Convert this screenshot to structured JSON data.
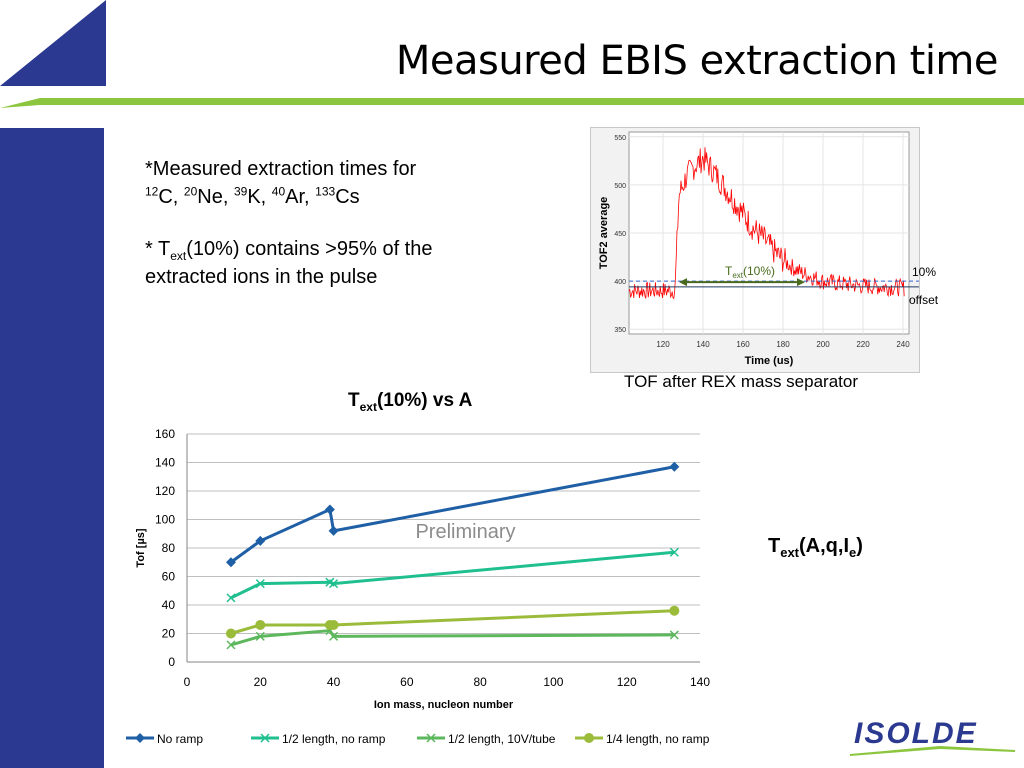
{
  "slide": {
    "title": "Measured EBIS extraction time",
    "bullet1": {
      "line1": "*Measured extraction times for",
      "isotopes": [
        {
          "mass": "12",
          "symbol": "C",
          "sep": ", "
        },
        {
          "mass": "20",
          "symbol": "Ne",
          "sep": ", "
        },
        {
          "mass": "39",
          "symbol": "K",
          "sep": ", "
        },
        {
          "mass": "40",
          "symbol": "Ar",
          "sep": ", "
        },
        {
          "mass": "133",
          "symbol": "Cs",
          "sep": ""
        }
      ]
    },
    "bullet2": {
      "prefix": "* T",
      "sub": "ext",
      "rest": "(10%) contains >95% of the",
      "line2": "extracted ions in the pulse"
    },
    "formula": {
      "t": "T",
      "sub": "ext",
      "args": "(A,q,I",
      "isub": "e",
      "close": ")"
    },
    "tof_caption": "TOF after REX mass separator",
    "tof_label_10": "10%",
    "tof_label_offset": "offset",
    "logo_text": "ISOLDE",
    "colors": {
      "accent_blue": "#2b3990",
      "accent_green": "#8cc63f",
      "no_ramp": "#1f5fa6",
      "half_no_ramp": "#1fbf8f",
      "half_10v": "#5db85d",
      "quarter_no_ramp": "#9bbb3b",
      "tof_signal": "#ff0000"
    }
  },
  "chart_data": [
    {
      "type": "line",
      "title": {
        "t": "T",
        "sub": "ext",
        "rest": "(10%) vs A"
      },
      "xlabel": "Ion mass, nucleon number",
      "ylabel": "Tof [µs]",
      "xlim": [
        0,
        140
      ],
      "ylim": [
        0,
        160
      ],
      "xticks": [
        0,
        20,
        40,
        60,
        80,
        100,
        120,
        140
      ],
      "yticks": [
        0,
        20,
        40,
        60,
        80,
        100,
        120,
        140,
        160
      ],
      "grid": "horizontal",
      "legend": "bottom",
      "annotation": "Preliminary",
      "series": [
        {
          "name": "No ramp",
          "marker": "diamond",
          "color": "#1f5fa6",
          "points": [
            [
              12,
              70
            ],
            [
              20,
              85
            ],
            [
              39,
              107
            ],
            [
              40,
              92
            ],
            [
              133,
              137
            ]
          ]
        },
        {
          "name": "1/2 length, no ramp",
          "marker": "x",
          "color": "#1fbf8f",
          "points": [
            [
              12,
              45
            ],
            [
              20,
              55
            ],
            [
              39,
              56
            ],
            [
              40,
              55
            ],
            [
              133,
              77
            ]
          ]
        },
        {
          "name": "1/2 length, 10V/tube",
          "marker": "x",
          "color": "#5db85d",
          "points": [
            [
              12,
              12
            ],
            [
              20,
              18
            ],
            [
              39,
              22
            ],
            [
              40,
              18
            ],
            [
              133,
              19
            ]
          ]
        },
        {
          "name": "1/4 length, no ramp",
          "marker": "circle",
          "color": "#9bbb3b",
          "points": [
            [
              12,
              20
            ],
            [
              20,
              26
            ],
            [
              39,
              26
            ],
            [
              40,
              26
            ],
            [
              133,
              36
            ]
          ]
        }
      ]
    },
    {
      "type": "line",
      "xlabel": "Time (us)",
      "ylabel": "TOF2 average",
      "xlim": [
        103,
        243
      ],
      "ylim": [
        345,
        555
      ],
      "xticks": [
        120,
        140,
        160,
        180,
        200,
        220,
        240
      ],
      "yticks": [
        350,
        400,
        450,
        500,
        550
      ],
      "annotation": {
        "t": "T",
        "sub": "ext",
        "rest": "(10%)"
      },
      "level_10pct": 400,
      "offset": 394,
      "arrow_from": 128,
      "arrow_to": 191,
      "series": [
        {
          "color": "#ff0000",
          "x": [
            103,
            110,
            120,
            126,
            128,
            132,
            136,
            140,
            145,
            150,
            155,
            160,
            165,
            170,
            175,
            180,
            185,
            190,
            200,
            210,
            220,
            230,
            240
          ],
          "y": [
            390,
            390,
            390,
            390,
            490,
            510,
            520,
            528,
            515,
            500,
            485,
            470,
            455,
            445,
            432,
            422,
            414,
            408,
            400,
            397,
            395,
            394,
            393
          ]
        }
      ]
    }
  ]
}
